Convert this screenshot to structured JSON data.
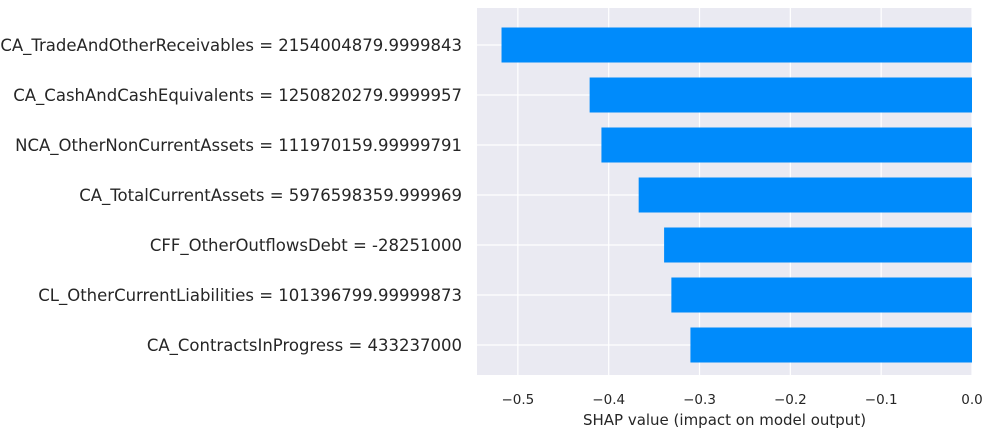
{
  "chart_data": {
    "type": "bar",
    "orientation": "horizontal",
    "categories": [
      "CA_TradeAndOtherReceivables = 2154004879.9999843",
      "CA_CashAndCashEquivalents = 1250820279.9999957",
      "NCA_OtherNonCurrentAssets = 111970159.99999791",
      "CA_TotalCurrentAssets = 5976598359.999969",
      "CFF_OtherOutflowsDebt = -28251000",
      "CL_OtherCurrentLiabilities = 101396799.99999873",
      "CA_ContractsInProgress = 433237000"
    ],
    "values": [
      -0.518,
      -0.421,
      -0.408,
      -0.367,
      -0.339,
      -0.331,
      -0.31
    ],
    "title": "",
    "xlabel": "SHAP value (impact on model output)",
    "ylabel": "",
    "xlim": [
      -0.545,
      0.0
    ],
    "xticks": [
      -0.5,
      -0.4,
      -0.3,
      -0.2,
      -0.1,
      0.0
    ],
    "xtick_labels": [
      "−0.5",
      "−0.4",
      "−0.3",
      "−0.2",
      "−0.1",
      "0.0"
    ],
    "grid": true,
    "colors": {
      "bar": "#008bfb",
      "background": "#eaeaf2",
      "grid": "#ffffff",
      "text": "#262626"
    }
  }
}
